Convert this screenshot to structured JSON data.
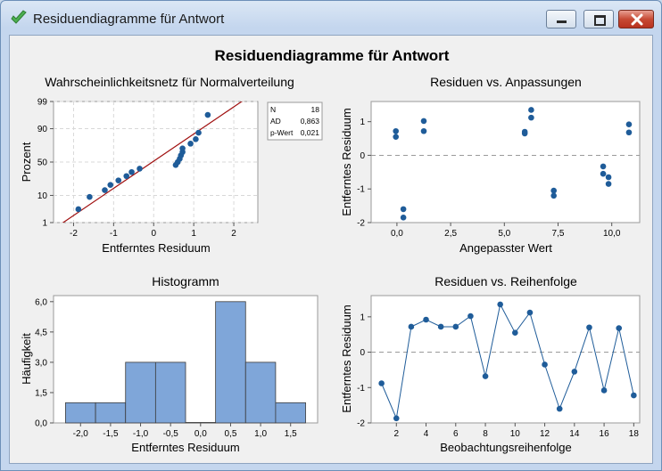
{
  "window": {
    "title": "Residuendiagramme für Antwort"
  },
  "main_title": "Residuendiagramme für Antwort",
  "colors": {
    "marker": "#1f5c99",
    "fit_line": "#a01010",
    "bar_fill": "#7fa6d9",
    "bar_stroke": "#3a3a3a",
    "ref_line": "#9a9a9a",
    "grid": "#d8d8d8"
  },
  "panels": {
    "normal": {
      "title": "Wahrscheinlichkeitsnetz für Normalverteilung",
      "xlabel": "Entferntes Residuum",
      "ylabel": "Prozent",
      "legend": [
        {
          "k": "N",
          "v": "18"
        },
        {
          "k": "AD",
          "v": "0,863"
        },
        {
          "k": "p-Wert",
          "v": "0,021"
        }
      ]
    },
    "fits": {
      "title": "Residuen vs. Anpassungen",
      "xlabel": "Angepasster Wert",
      "ylabel": "Entferntes Residuum"
    },
    "hist": {
      "title": "Histogramm",
      "xlabel": "Entferntes Residuum",
      "ylabel": "Häufigkeit"
    },
    "order": {
      "title": "Residuen vs. Reihenfolge",
      "xlabel": "Beobachtungsreihenfolge",
      "ylabel": "Entferntes Residuum"
    }
  },
  "chart_data": [
    {
      "type": "scatter",
      "title": "Wahrscheinlichkeitsnetz für Normalverteilung",
      "xlabel": "Entferntes Residuum",
      "ylabel": "Prozent",
      "xlim": [
        -2.5,
        2.6
      ],
      "ylim": [
        1,
        99
      ],
      "yscale": "normal-probability",
      "xticks": [
        -2,
        -1,
        0,
        1,
        2
      ],
      "xtick_labels": [
        "-2",
        "-1",
        "0",
        "1",
        "2"
      ],
      "yticks": [
        1,
        10,
        50,
        90,
        99
      ],
      "ytick_labels": [
        "1",
        "10",
        "50",
        "90",
        "99"
      ],
      "grid": true,
      "points": [
        [
          -1.88,
          3.5
        ],
        [
          -1.6,
          9
        ],
        [
          -1.22,
          14
        ],
        [
          -1.08,
          19
        ],
        [
          -0.88,
          24
        ],
        [
          -0.68,
          29.5
        ],
        [
          -0.55,
          35
        ],
        [
          -0.35,
          40
        ],
        [
          0.55,
          45.5
        ],
        [
          0.6,
          50
        ],
        [
          0.65,
          55
        ],
        [
          0.68,
          60
        ],
        [
          0.72,
          65
        ],
        [
          0.72,
          70
        ],
        [
          0.92,
          76
        ],
        [
          1.05,
          81
        ],
        [
          1.12,
          87
        ],
        [
          1.35,
          96.5
        ]
      ],
      "fit_line": [
        [
          -2.5,
          0.5
        ],
        [
          2.6,
          99.7
        ]
      ]
    },
    {
      "type": "scatter",
      "title": "Residuen vs. Anpassungen",
      "xlabel": "Angepasster Wert",
      "ylabel": "Entferntes Residuum",
      "xlim": [
        -1.2,
        11.3
      ],
      "ylim": [
        -2,
        1.6
      ],
      "xticks": [
        0,
        2.5,
        5,
        7.5,
        10
      ],
      "xtick_labels": [
        "0,0",
        "2,5",
        "5,0",
        "7,5",
        "10,0"
      ],
      "yticks": [
        -2,
        -1,
        0,
        1
      ],
      "ytick_labels": [
        "-2",
        "-1",
        "0",
        "1"
      ],
      "reference_line": 0,
      "points": [
        [
          -0.05,
          0.72
        ],
        [
          -0.05,
          0.55
        ],
        [
          0.3,
          -1.6
        ],
        [
          0.3,
          -1.85
        ],
        [
          1.25,
          1.02
        ],
        [
          1.25,
          0.72
        ],
        [
          5.95,
          0.7
        ],
        [
          5.95,
          0.65
        ],
        [
          6.25,
          1.35
        ],
        [
          6.25,
          1.12
        ],
        [
          7.3,
          -1.05
        ],
        [
          7.3,
          -1.2
        ],
        [
          9.6,
          -0.33
        ],
        [
          9.6,
          -0.55
        ],
        [
          9.85,
          -0.65
        ],
        [
          9.85,
          -0.85
        ],
        [
          10.8,
          0.92
        ],
        [
          10.8,
          0.68
        ]
      ]
    },
    {
      "type": "bar",
      "title": "Histogramm",
      "xlabel": "Entferntes Residuum",
      "ylabel": "Häufigkeit",
      "xlim": [
        -2.45,
        1.95
      ],
      "ylim": [
        0,
        6.3
      ],
      "bin_width": 0.5,
      "bin_starts": [
        -2.25,
        -1.75,
        -1.25,
        -0.75,
        -0.25,
        0.25,
        0.75,
        1.25
      ],
      "values": [
        1,
        1,
        3,
        3,
        0,
        6,
        3,
        1
      ],
      "xticks": [
        -2,
        -1.5,
        -1,
        -0.5,
        0,
        0.5,
        1,
        1.5
      ],
      "xtick_labels": [
        "-2,0",
        "-1,5",
        "-1,0",
        "-0,5",
        "0,0",
        "0,5",
        "1,0",
        "1,5"
      ],
      "yticks": [
        0,
        1.5,
        3,
        4.5,
        6
      ],
      "ytick_labels": [
        "0,0",
        "1,5",
        "3,0",
        "4,5",
        "6,0"
      ]
    },
    {
      "type": "line",
      "title": "Residuen vs. Reihenfolge",
      "xlabel": "Beobachtungsreihenfolge",
      "ylabel": "Entferntes Residuum",
      "xlim": [
        0.3,
        18.4
      ],
      "ylim": [
        -2,
        1.6
      ],
      "x": [
        1,
        2,
        3,
        4,
        5,
        6,
        7,
        8,
        9,
        10,
        11,
        12,
        13,
        14,
        15,
        16,
        17,
        18
      ],
      "values": [
        -0.88,
        -1.87,
        0.72,
        0.92,
        0.72,
        0.72,
        1.02,
        -0.68,
        1.35,
        0.55,
        1.12,
        -0.35,
        -1.6,
        -0.55,
        0.7,
        -1.08,
        0.68,
        -1.22
      ],
      "xticks": [
        2,
        4,
        6,
        8,
        10,
        12,
        14,
        16,
        18
      ],
      "xtick_labels": [
        "2",
        "4",
        "6",
        "8",
        "10",
        "12",
        "14",
        "16",
        "18"
      ],
      "yticks": [
        -2,
        -1,
        0,
        1
      ],
      "ytick_labels": [
        "-2",
        "-1",
        "0",
        "1"
      ],
      "reference_line": 0
    }
  ]
}
